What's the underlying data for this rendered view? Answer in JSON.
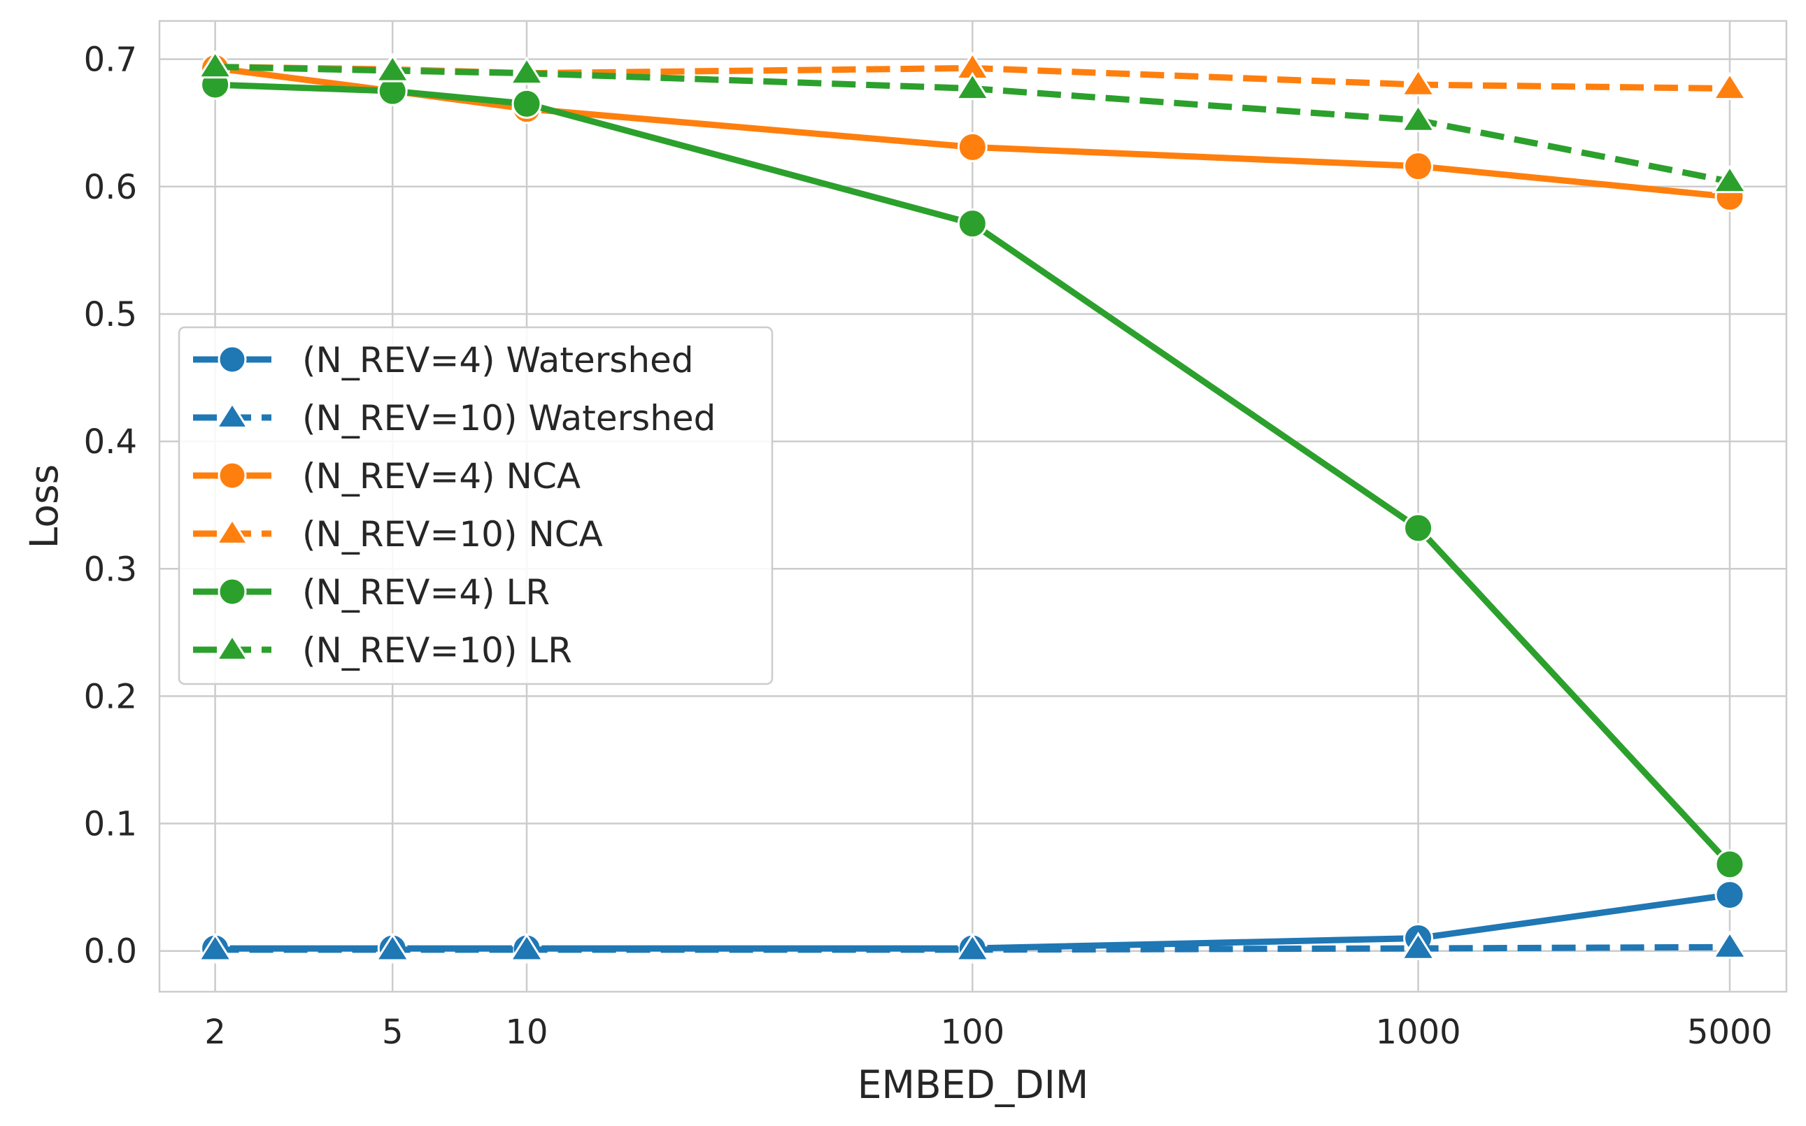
{
  "chart_data": {
    "type": "line",
    "title": "",
    "xlabel": "EMBED_DIM",
    "ylabel": "Loss",
    "xscale": "log",
    "x": [
      2,
      5,
      10,
      100,
      1000,
      5000
    ],
    "x_tick_labels": [
      "2",
      "5",
      "10",
      "100",
      "1000",
      "5000"
    ],
    "y_ticks": [
      0.0,
      0.1,
      0.2,
      0.3,
      0.4,
      0.5,
      0.6,
      0.7
    ],
    "y_tick_labels": [
      "0.0",
      "0.1",
      "0.2",
      "0.3",
      "0.4",
      "0.5",
      "0.6",
      "0.7"
    ],
    "ylim": [
      -0.032,
      0.73
    ],
    "grid": true,
    "legend_position": "center-left",
    "series": [
      {
        "name": "(N_REV=4) Watershed",
        "color": "#1f77b4",
        "linestyle": "solid",
        "marker": "circle",
        "values": [
          0.002,
          0.002,
          0.002,
          0.002,
          0.01,
          0.044
        ]
      },
      {
        "name": "(N_REV=10) Watershed",
        "color": "#1f77b4",
        "linestyle": "dashed",
        "marker": "triangle",
        "values": [
          0.001,
          0.001,
          0.001,
          0.001,
          0.002,
          0.003
        ]
      },
      {
        "name": "(N_REV=4) NCA",
        "color": "#ff7f0e",
        "linestyle": "solid",
        "marker": "circle",
        "values": [
          0.693,
          0.675,
          0.661,
          0.631,
          0.616,
          0.592
        ]
      },
      {
        "name": "(N_REV=10) NCA",
        "color": "#ff7f0e",
        "linestyle": "dashed",
        "marker": "triangle",
        "values": [
          0.694,
          0.692,
          0.689,
          0.693,
          0.68,
          0.677
        ]
      },
      {
        "name": "(N_REV=4) LR",
        "color": "#2ca02c",
        "linestyle": "solid",
        "marker": "circle",
        "values": [
          0.68,
          0.675,
          0.665,
          0.571,
          0.332,
          0.068
        ]
      },
      {
        "name": "(N_REV=10) LR",
        "color": "#2ca02c",
        "linestyle": "dashed",
        "marker": "triangle",
        "values": [
          0.694,
          0.691,
          0.689,
          0.677,
          0.652,
          0.604
        ]
      }
    ]
  }
}
